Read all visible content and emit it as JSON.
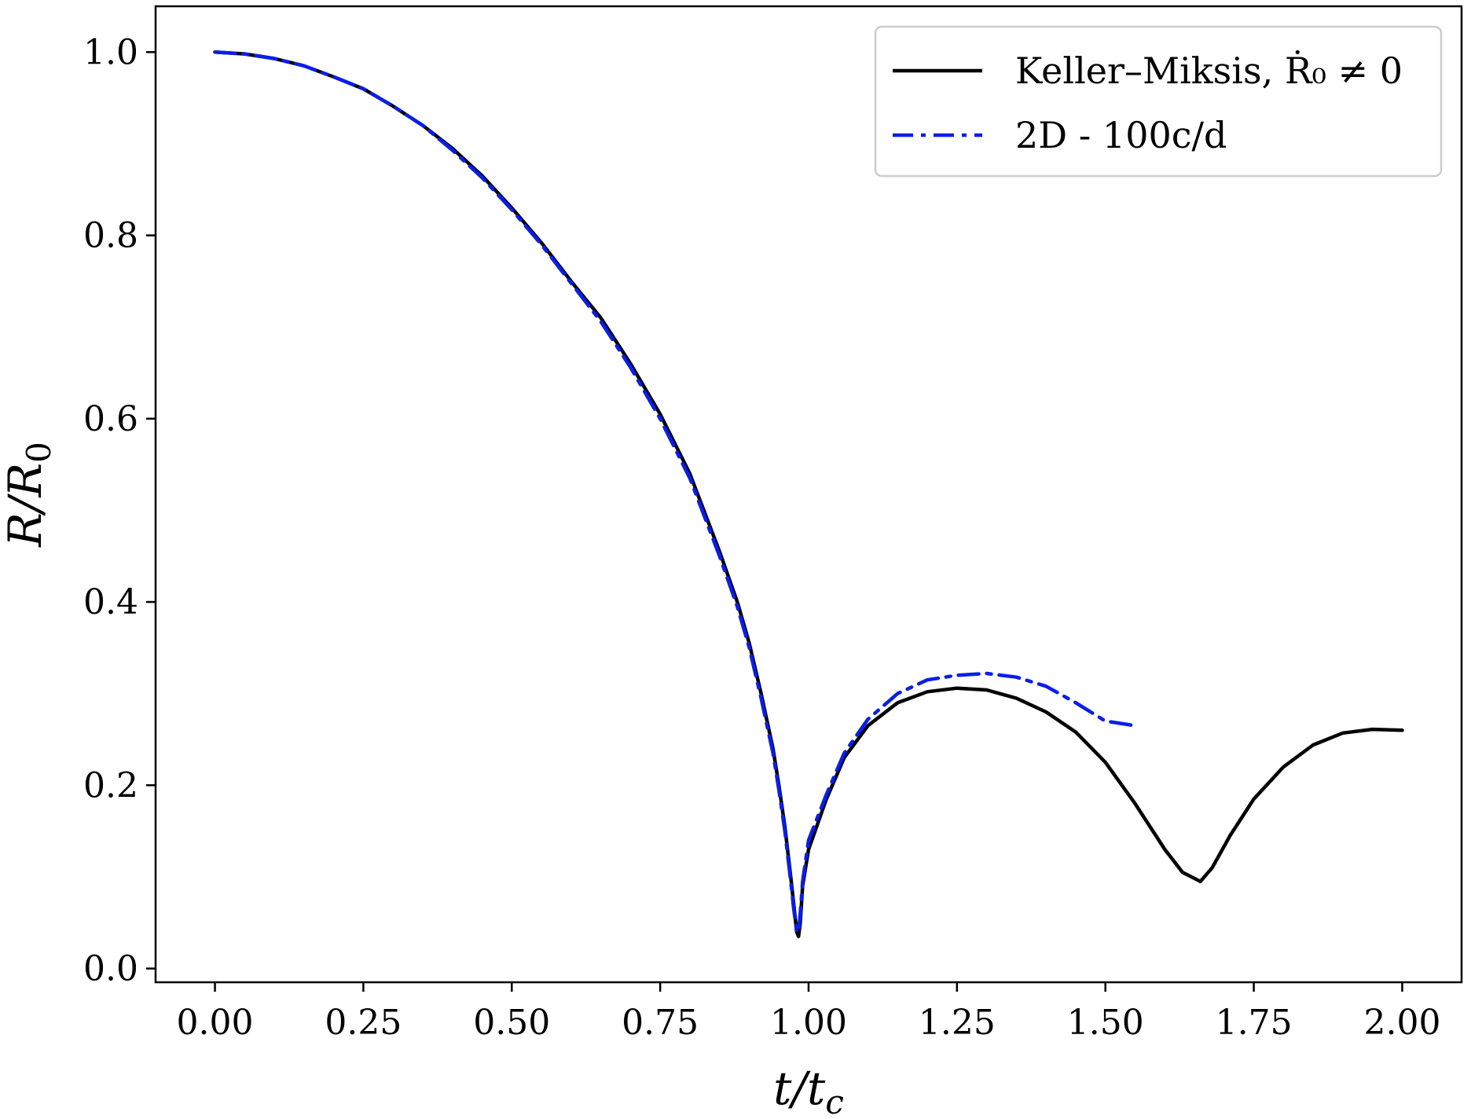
{
  "chart_data": {
    "type": "line",
    "xlabel": "t/t_c",
    "ylabel": "R/R_0",
    "xlim": [
      -0.1,
      2.1
    ],
    "ylim": [
      -0.015,
      1.05
    ],
    "xticks": [
      0.0,
      0.25,
      0.5,
      0.75,
      1.0,
      1.25,
      1.5,
      1.75,
      2.0
    ],
    "xtick_labels": [
      "0.00",
      "0.25",
      "0.50",
      "0.75",
      "1.00",
      "1.25",
      "1.50",
      "1.75",
      "2.00"
    ],
    "yticks": [
      0.0,
      0.2,
      0.4,
      0.6,
      0.8,
      1.0
    ],
    "ytick_labels": [
      "0.0",
      "0.2",
      "0.4",
      "0.6",
      "0.8",
      "1.0"
    ],
    "grid": false,
    "legend_position": "top-right",
    "series": [
      {
        "name": "Keller–Miksis, Ṙ₀ ≠ 0",
        "color": "#000000",
        "style": "solid",
        "x": [
          0.0,
          0.05,
          0.1,
          0.15,
          0.2,
          0.25,
          0.3,
          0.35,
          0.4,
          0.45,
          0.5,
          0.55,
          0.6,
          0.65,
          0.7,
          0.75,
          0.8,
          0.85,
          0.88,
          0.9,
          0.92,
          0.94,
          0.95,
          0.96,
          0.97,
          0.975,
          0.98,
          0.983,
          0.986,
          0.99,
          1.0,
          1.03,
          1.06,
          1.1,
          1.15,
          1.2,
          1.25,
          1.3,
          1.35,
          1.4,
          1.45,
          1.5,
          1.55,
          1.6,
          1.63,
          1.66,
          1.68,
          1.71,
          1.75,
          1.8,
          1.85,
          1.9,
          1.95,
          2.0
        ],
        "y": [
          1.0,
          0.998,
          0.993,
          0.985,
          0.973,
          0.96,
          0.941,
          0.92,
          0.895,
          0.865,
          0.83,
          0.792,
          0.75,
          0.71,
          0.66,
          0.605,
          0.54,
          0.455,
          0.4,
          0.355,
          0.3,
          0.24,
          0.2,
          0.155,
          0.1,
          0.07,
          0.04,
          0.035,
          0.05,
          0.09,
          0.13,
          0.185,
          0.23,
          0.265,
          0.29,
          0.302,
          0.306,
          0.304,
          0.295,
          0.28,
          0.258,
          0.225,
          0.18,
          0.13,
          0.105,
          0.095,
          0.11,
          0.145,
          0.185,
          0.22,
          0.244,
          0.257,
          0.261,
          0.26
        ]
      },
      {
        "name": "2D - 100c/d",
        "color": "#0a1eea",
        "style": "dashdot",
        "x": [
          0.0,
          0.05,
          0.1,
          0.15,
          0.2,
          0.25,
          0.3,
          0.35,
          0.4,
          0.45,
          0.5,
          0.55,
          0.6,
          0.65,
          0.7,
          0.75,
          0.8,
          0.85,
          0.88,
          0.9,
          0.92,
          0.94,
          0.95,
          0.96,
          0.97,
          0.975,
          0.98,
          0.983,
          0.986,
          0.99,
          1.0,
          1.03,
          1.06,
          1.1,
          1.15,
          1.2,
          1.25,
          1.3,
          1.35,
          1.4,
          1.45,
          1.5,
          1.55
        ],
        "y": [
          1.0,
          0.998,
          0.993,
          0.985,
          0.973,
          0.96,
          0.941,
          0.92,
          0.893,
          0.863,
          0.828,
          0.79,
          0.748,
          0.706,
          0.656,
          0.6,
          0.535,
          0.45,
          0.395,
          0.35,
          0.295,
          0.235,
          0.195,
          0.15,
          0.095,
          0.065,
          0.04,
          0.04,
          0.06,
          0.095,
          0.14,
          0.19,
          0.235,
          0.272,
          0.3,
          0.315,
          0.32,
          0.322,
          0.318,
          0.308,
          0.29,
          0.27,
          0.265
        ]
      }
    ]
  }
}
